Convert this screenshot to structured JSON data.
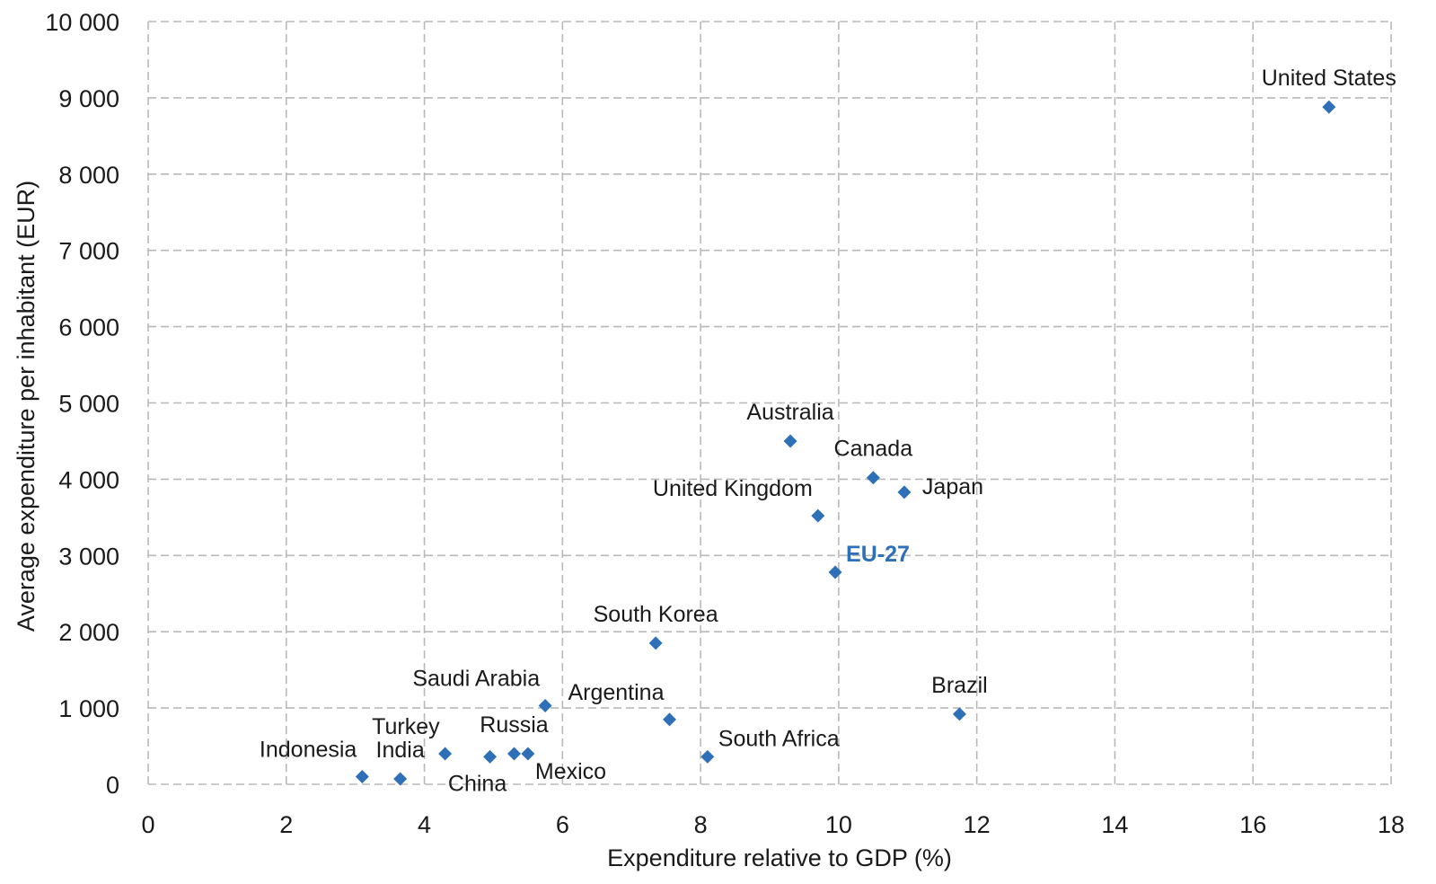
{
  "chart_data": {
    "type": "scatter",
    "title": "",
    "xlabel": "Expenditure relative to GDP (%)",
    "ylabel": "Average expenditure per inhabitant (EUR)",
    "xlim": [
      0,
      18
    ],
    "ylim": [
      0,
      10000
    ],
    "x_ticks": [
      0,
      2,
      4,
      6,
      8,
      10,
      12,
      14,
      16,
      18
    ],
    "y_ticks": [
      0,
      1000,
      2000,
      3000,
      4000,
      5000,
      6000,
      7000,
      8000,
      9000,
      10000
    ],
    "x_tick_labels": [
      "0",
      "2",
      "4",
      "6",
      "8",
      "10",
      "12",
      "14",
      "16",
      "18"
    ],
    "y_tick_labels": [
      "0",
      "1 000",
      "2 000",
      "3 000",
      "4 000",
      "5 000",
      "6 000",
      "7 000",
      "8 000",
      "9 000",
      "10 000"
    ],
    "grid": true,
    "marker": "diamond",
    "colors": {
      "marker": "#2e70b8",
      "highlight_label": "#2e70b8",
      "grid": "#b8b8b8",
      "text": "#1a1a1a"
    },
    "points": [
      {
        "label": "United States",
        "x": 17.1,
        "y": 8880,
        "label_pos": "above"
      },
      {
        "label": "Australia",
        "x": 9.3,
        "y": 4500,
        "label_pos": "above"
      },
      {
        "label": "Canada",
        "x": 10.5,
        "y": 4020,
        "label_pos": "above"
      },
      {
        "label": "Japan",
        "x": 10.95,
        "y": 3830,
        "label_pos": "right"
      },
      {
        "label": "United Kingdom",
        "x": 9.7,
        "y": 3520,
        "label_pos": "above-left"
      },
      {
        "label": "EU-27",
        "x": 9.95,
        "y": 2780,
        "label_pos": "above-right",
        "highlight": true
      },
      {
        "label": "South Korea",
        "x": 7.35,
        "y": 1850,
        "label_pos": "above"
      },
      {
        "label": "Saudi Arabia",
        "x": 5.75,
        "y": 1030,
        "label_pos": "above-left"
      },
      {
        "label": "Argentina",
        "x": 7.55,
        "y": 850,
        "label_pos": "above-left"
      },
      {
        "label": "Brazil",
        "x": 11.75,
        "y": 920,
        "label_pos": "above"
      },
      {
        "label": "South Africa",
        "x": 8.1,
        "y": 360,
        "label_pos": "above-right"
      },
      {
        "label": "Turkey",
        "x": 4.3,
        "y": 400,
        "label_pos": "above-left"
      },
      {
        "label": "Russia",
        "x": 5.3,
        "y": 400,
        "label_pos": "above"
      },
      {
        "label": "China",
        "x": 4.95,
        "y": 360,
        "label_pos": "below"
      },
      {
        "label": "Mexico",
        "x": 5.5,
        "y": 400,
        "label_pos": "below-right"
      },
      {
        "label": "Indonesia",
        "x": 3.1,
        "y": 100,
        "label_pos": "above-left"
      },
      {
        "label": "India",
        "x": 3.65,
        "y": 70,
        "label_pos": "above"
      }
    ]
  }
}
